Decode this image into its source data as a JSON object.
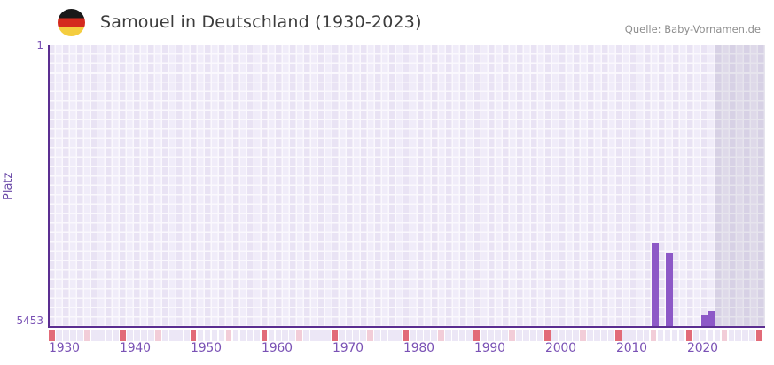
{
  "header": {
    "title": "Samouel in Deutschland (1930-2023)",
    "flag_icon": "german-flag-icon",
    "source": "Quelle: Baby-Vornamen.de"
  },
  "chart_data": {
    "type": "bar",
    "title": "Samouel in Deutschland (1930-2023)",
    "xlabel": "",
    "ylabel": "Platz",
    "y_axis_reversed": true,
    "ylim": [
      1,
      5453
    ],
    "y_ticks": [
      "1",
      "5453"
    ],
    "x_range": [
      1930,
      2030
    ],
    "x_ticks": [
      1930,
      1940,
      1950,
      1960,
      1970,
      1980,
      1990,
      2000,
      2010,
      2020
    ],
    "points": [
      {
        "year": 2015,
        "rank": 3900
      },
      {
        "year": 2017,
        "rank": 4110
      },
      {
        "year": 2022,
        "rank": 5320
      },
      {
        "year": 2023,
        "rank": 5250
      }
    ],
    "future_region": {
      "start_year": 2024,
      "end_year": 2030
    },
    "year_strip": {
      "red_years": [
        1930,
        1940,
        1950,
        1960,
        1970,
        1980,
        1990,
        2000,
        2010,
        2020,
        2030
      ],
      "pink_years": [
        1935,
        1945,
        1955,
        1965,
        1975,
        1985,
        1995,
        2005,
        2015,
        2025
      ]
    },
    "grid": true,
    "legend": "none"
  },
  "colors": {
    "bar": "#8d59c7",
    "axis_line": "#5b2e91",
    "tick_text": "#7a52b5",
    "marker_decade": "#e26b78",
    "marker_mid_decade": "#f2cdd8",
    "marker_default": "#ece7f6",
    "title_text": "#3c3c3c",
    "source_text": "#8e8e8e"
  }
}
